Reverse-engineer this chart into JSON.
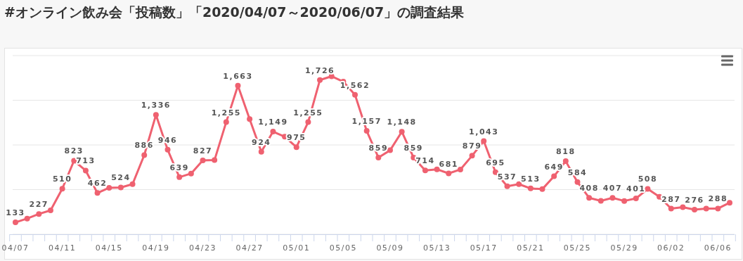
{
  "chart_data": {
    "type": "line",
    "title": "#オンライン飲み会「投稿数」「2020/04/07～2020/06/07」の調査結果",
    "categories": [
      "04/07",
      null,
      null,
      null,
      "04/11",
      null,
      null,
      null,
      "04/15",
      null,
      null,
      null,
      "04/19",
      null,
      null,
      null,
      "04/23",
      null,
      null,
      null,
      "04/27",
      null,
      null,
      null,
      "05/01",
      null,
      null,
      null,
      "05/05",
      null,
      null,
      null,
      "05/09",
      null,
      null,
      null,
      "05/13",
      null,
      null,
      null,
      "05/17",
      null,
      null,
      null,
      "05/21",
      null,
      null,
      null,
      "05/25",
      null,
      null,
      null,
      "05/29",
      null,
      null,
      null,
      "06/02",
      null,
      null,
      null,
      "06/06",
      null
    ],
    "series": [
      {
        "color": "#ef6170",
        "values": [
          133,
          176,
          227,
          268,
          510,
          823,
          713,
          462,
          520,
          524,
          561,
          886,
          1336,
          946,
          639,
          680,
          827,
          830,
          1255,
          1663,
          1289,
          924,
          1149,
          1092,
          975,
          1255,
          1726,
          1768,
          1708,
          1562,
          1157,
          859,
          940,
          1148,
          859,
          714,
          727,
          681,
          725,
          879,
          1043,
          695,
          537,
          561,
          513,
          505,
          649,
          818,
          584,
          408,
          374,
          407,
          373,
          401,
          508,
          419,
          287,
          303,
          276,
          287,
          288,
          353
        ],
        "value_labels": [
          "133",
          null,
          "227",
          null,
          "510",
          "823",
          "713",
          "462",
          null,
          "524",
          null,
          "886",
          "1,336",
          "946",
          "639",
          null,
          "827",
          null,
          "1,255",
          "1,663",
          null,
          "924",
          "1,149",
          null,
          "975",
          "1,255",
          "1,726",
          null,
          null,
          "1,562",
          "1,157",
          "859",
          null,
          "1,148",
          "859",
          "714",
          null,
          "681",
          null,
          "879",
          "1,043",
          "695",
          "537",
          null,
          "513",
          null,
          "649",
          "818",
          "584",
          "408",
          null,
          "407",
          null,
          "401",
          "508",
          null,
          "287",
          null,
          "276",
          null,
          "288",
          null
        ]
      }
    ],
    "ylim": [
      0,
      2000
    ],
    "yticks": [
      {
        "value": 0,
        "label": null
      },
      {
        "value": 500,
        "label": null
      },
      {
        "value": 1000,
        "label": null
      },
      {
        "value": 1500,
        "label": null
      },
      {
        "value": 2000,
        "label": null
      }
    ],
    "grid": "y",
    "marker": "circle",
    "line_style": "solid"
  }
}
